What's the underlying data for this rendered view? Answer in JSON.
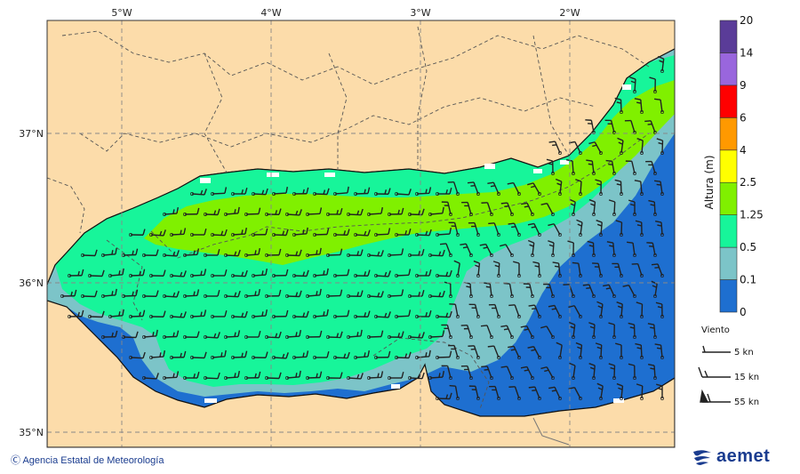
{
  "map": {
    "lon_labels": [
      "5°W",
      "4°W",
      "3°W",
      "2°W"
    ],
    "lat_labels": [
      "37°N",
      "36°N",
      "35°N"
    ]
  },
  "colorbar": {
    "title": "Altura (m)",
    "levels": [
      "0",
      "0.1",
      "0.5",
      "1.25",
      "2.5",
      "4",
      "6",
      "9",
      "14",
      "20"
    ],
    "colors": [
      "#1e6fd0",
      "#7cc4c8",
      "#17f59a",
      "#80f000",
      "#ffff00",
      "#ff9900",
      "#ff0000",
      "#9966dd",
      "#5a3c98"
    ]
  },
  "legend": {
    "title": "Viento",
    "items": [
      "5 kn",
      "15 kn",
      "55 kn"
    ]
  },
  "footer": {
    "credit": "Agencia Estatal de Meteorología",
    "logo_text": "aemet"
  },
  "colors": {
    "land": "#fcdcaa",
    "grid": "#888888"
  }
}
